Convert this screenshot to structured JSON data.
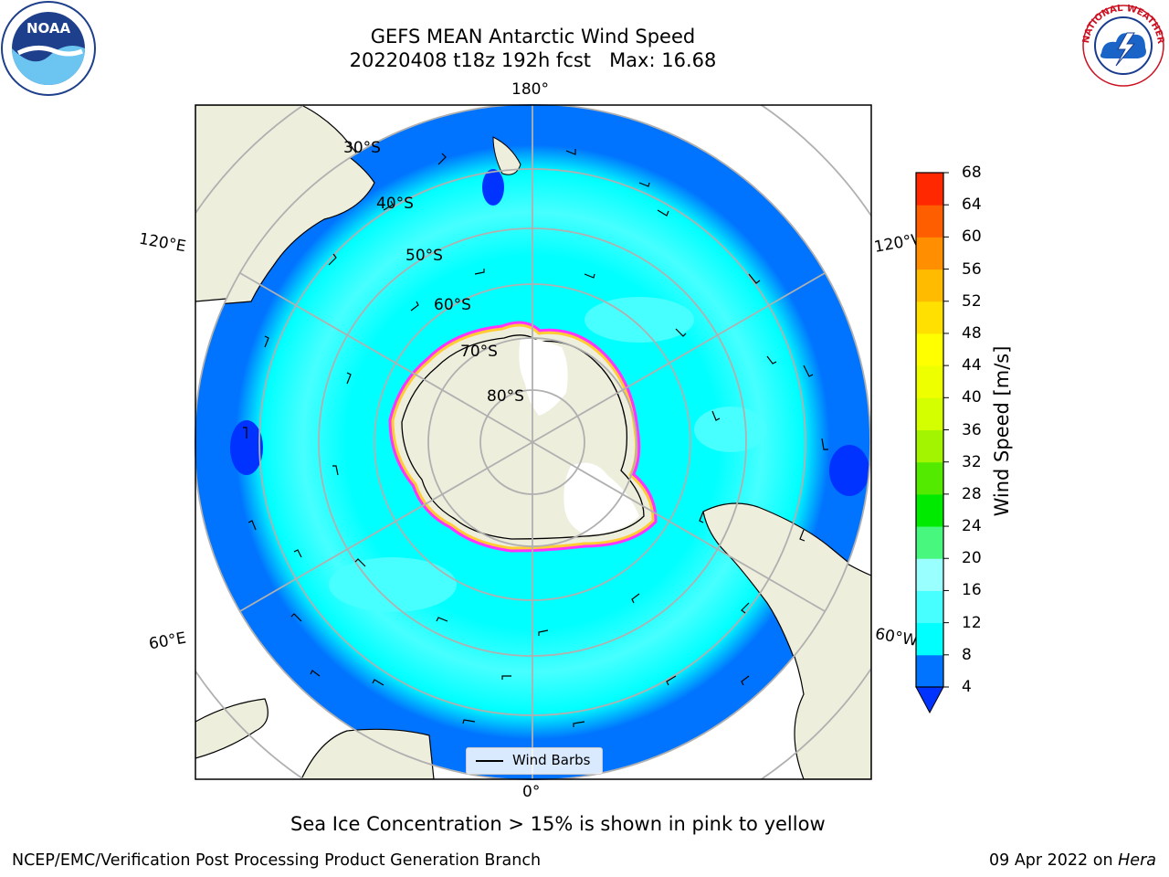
{
  "header": {
    "title_line1": "GEFS MEAN Antarctic Wind Speed",
    "title_line2": "20220408 t18z 192h fcst   Max: 16.68"
  },
  "logos": {
    "left": "noaa-logo",
    "right": "national-weather-service-logo",
    "noaa_text": "NOAA",
    "nws_text": "NATIONAL WEATHER SERVICE"
  },
  "map": {
    "projection": "south-polar-stereographic",
    "longitude_labels": [
      "180°",
      "120°E",
      "120°W",
      "60°E",
      "60°W",
      "0°"
    ],
    "latitude_labels": [
      "30°S",
      "40°S",
      "50°S",
      "60°S",
      "70°S",
      "80°S"
    ],
    "legend_label": "Wind Barbs",
    "colors": {
      "land": "#eeeedd",
      "ice_shelf": "#ffffff",
      "sea_ice_edge": [
        "#ff33ff",
        "#ffcc33"
      ]
    }
  },
  "colorbar": {
    "title": "Wind Speed [m/s]",
    "ticks": [
      "4",
      "8",
      "12",
      "16",
      "20",
      "24",
      "28",
      "32",
      "36",
      "40",
      "44",
      "48",
      "52",
      "56",
      "60",
      "64",
      "68"
    ],
    "colors": [
      "#0073ff",
      "#00ffff",
      "#47ffff",
      "#9affff",
      "#48f77d",
      "#00ea00",
      "#54ea00",
      "#a3f400",
      "#d4ff00",
      "#eeff00",
      "#ffff00",
      "#ffe000",
      "#ffbb00",
      "#ff8f00",
      "#ff5e00",
      "#ff2800",
      "#ff0000"
    ],
    "under_color": "#0033ff"
  },
  "subtitle": "Sea Ice Concentration > 15% is shown in pink to yellow",
  "footer": {
    "left": "NCEP/EMC/Verification Post Processing Product Generation Branch",
    "right_date": "09 Apr 2022 on",
    "right_host": "Hera"
  }
}
